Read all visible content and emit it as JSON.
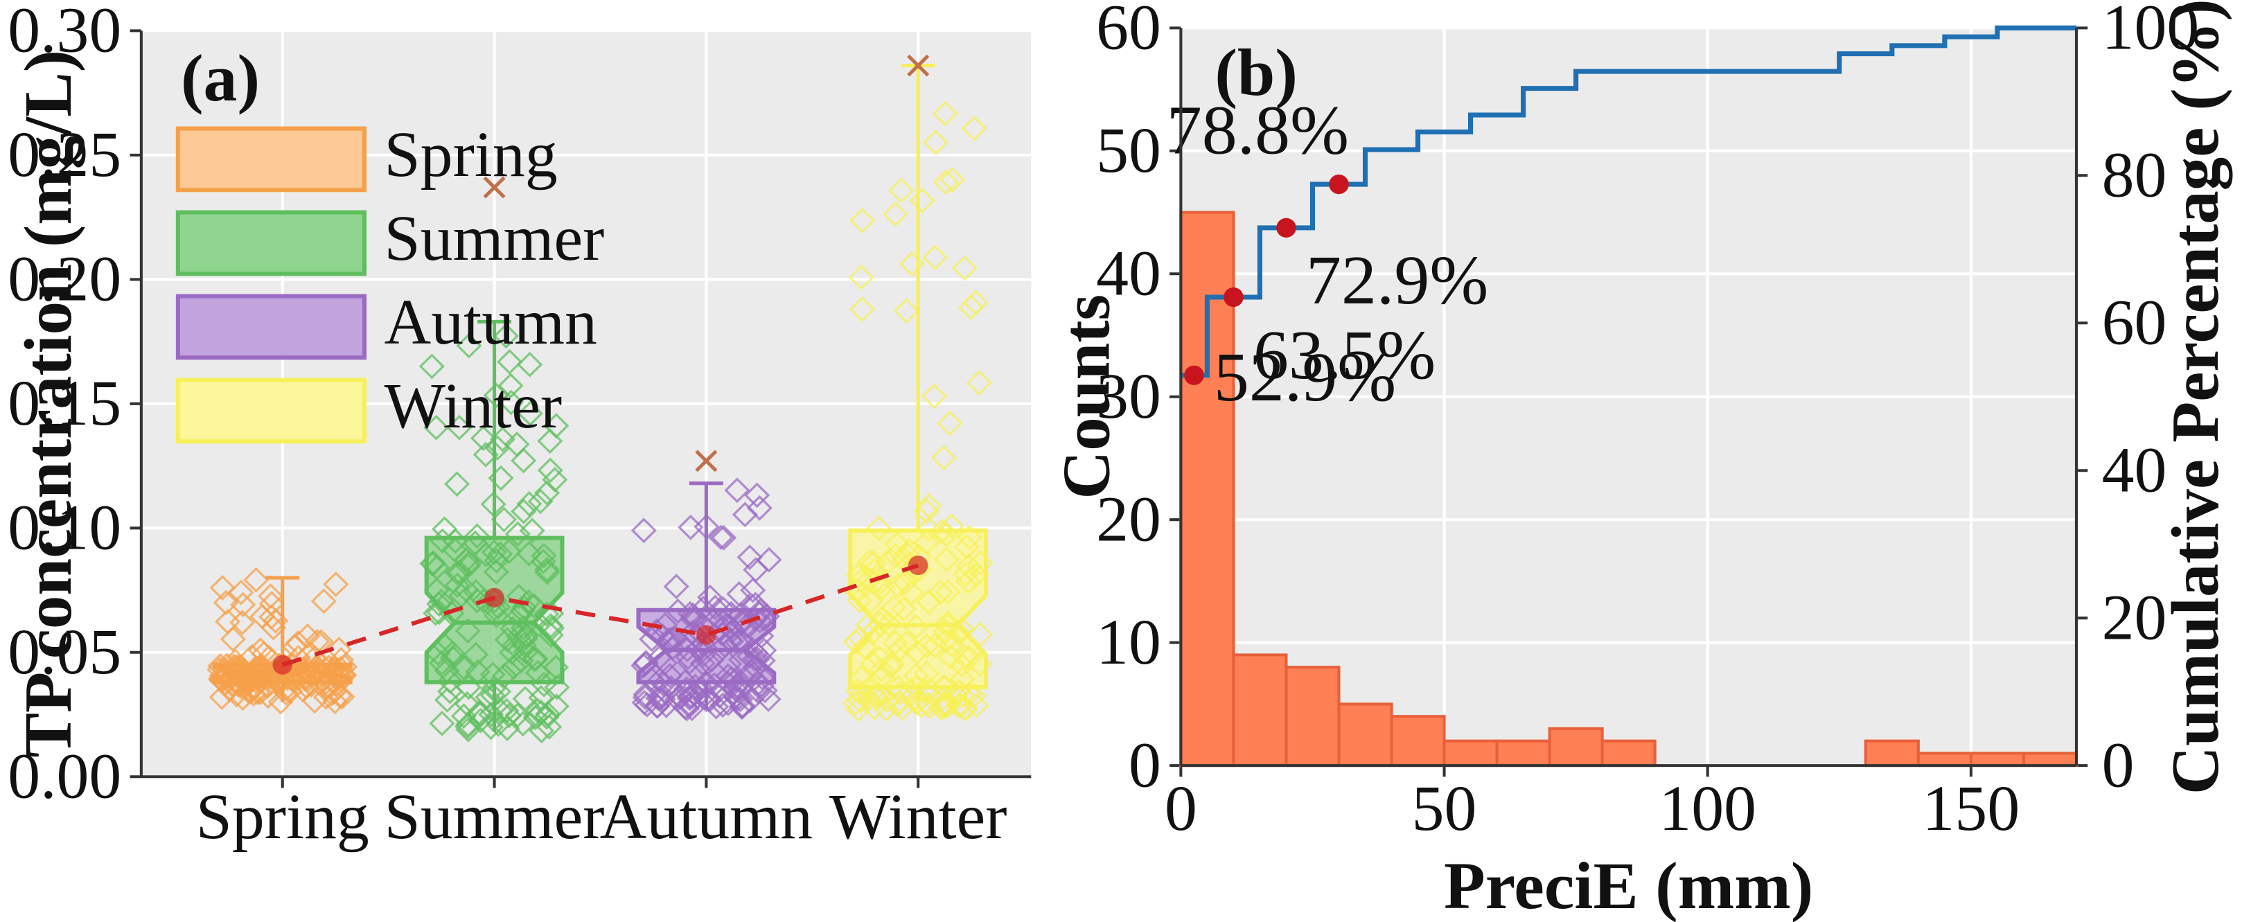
{
  "chart_data": [
    {
      "type": "box",
      "panel_label": "(a)",
      "title": "",
      "xlabel": "",
      "ylabel": "TP concentration (mg/L)",
      "ylim": [
        0,
        0.3
      ],
      "yticks": [
        "0.00",
        "0.05",
        "0.10",
        "0.15",
        "0.20",
        "0.25",
        "0.30"
      ],
      "categories": [
        "Spring",
        "Summer",
        "Autumn",
        "Winter"
      ],
      "legend": [
        "Spring",
        "Summer",
        "Autumn",
        "Winter"
      ],
      "legend_position": "top-left",
      "grid": true,
      "colors": {
        "Spring": "#f5a04a",
        "Summer": "#5fbf5f",
        "Autumn": "#9b6bc4",
        "Winter": "#f7f05a",
        "mean_line": "#d62728",
        "background": "#ebebeb"
      },
      "boxes": [
        {
          "name": "Spring",
          "q1": 0.038,
          "median": 0.042,
          "q3": 0.045,
          "whisker_low": 0.03,
          "whisker_high": 0.08,
          "mean": 0.045,
          "max_outlier": null
        },
        {
          "name": "Summer",
          "q1": 0.038,
          "median": 0.062,
          "q3": 0.096,
          "whisker_low": 0.018,
          "whisker_high": 0.183,
          "mean": 0.072,
          "max_outlier": 0.237
        },
        {
          "name": "Autumn",
          "q1": 0.038,
          "median": 0.051,
          "q3": 0.067,
          "whisker_low": 0.027,
          "whisker_high": 0.118,
          "mean": 0.057,
          "max_outlier": 0.127
        },
        {
          "name": "Winter",
          "q1": 0.036,
          "median": 0.061,
          "q3": 0.099,
          "whisker_low": 0.027,
          "whisker_high": 0.286,
          "mean": 0.085,
          "max_outlier": 0.286
        }
      ]
    },
    {
      "type": "histogram",
      "panel_label": "(b)",
      "title": "",
      "xlabel": "PreciE (mm)",
      "ylabel": "Counts",
      "y2label": "Cumulative Percentage (%)",
      "xlim": [
        0,
        170
      ],
      "ylim": [
        0,
        60
      ],
      "y2lim": [
        0,
        100
      ],
      "xticks": [
        "0",
        "50",
        "100",
        "150"
      ],
      "yticks": [
        "0",
        "10",
        "20",
        "30",
        "40",
        "50",
        "60"
      ],
      "y2ticks": [
        "0",
        "20",
        "40",
        "60",
        "80",
        "100"
      ],
      "grid": true,
      "colors": {
        "bars": "#ff8055",
        "bar_edge": "#e8603a",
        "cumulative": "#1f6fb2",
        "markers": "#c8141e",
        "background": "#ebebeb"
      },
      "bin_width": 10,
      "bins": [
        {
          "start": 0,
          "count": 45
        },
        {
          "start": 10,
          "count": 9
        },
        {
          "start": 20,
          "count": 8
        },
        {
          "start": 30,
          "count": 5
        },
        {
          "start": 40,
          "count": 4
        },
        {
          "start": 50,
          "count": 2
        },
        {
          "start": 60,
          "count": 2
        },
        {
          "start": 70,
          "count": 3
        },
        {
          "start": 80,
          "count": 2
        },
        {
          "start": 130,
          "count": 2
        },
        {
          "start": 140,
          "count": 1
        },
        {
          "start": 150,
          "count": 1
        },
        {
          "start": 160,
          "count": 1
        }
      ],
      "cumulative_steps": [
        {
          "x": 0,
          "pct": 52.9
        },
        {
          "x": 5,
          "pct": 63.5
        },
        {
          "x": 15,
          "pct": 72.9
        },
        {
          "x": 25,
          "pct": 78.8
        },
        {
          "x": 35,
          "pct": 83.5
        },
        {
          "x": 45,
          "pct": 85.9
        },
        {
          "x": 55,
          "pct": 88.2
        },
        {
          "x": 65,
          "pct": 91.8
        },
        {
          "x": 75,
          "pct": 94.1
        },
        {
          "x": 125,
          "pct": 96.5
        },
        {
          "x": 135,
          "pct": 97.6
        },
        {
          "x": 145,
          "pct": 98.8
        },
        {
          "x": 155,
          "pct": 100
        },
        {
          "x": 170,
          "pct": 100
        }
      ],
      "highlight_points": [
        {
          "x": 2.5,
          "pct": 52.9,
          "label": "52.9%"
        },
        {
          "x": 10,
          "pct": 63.5,
          "label": "63.5%"
        },
        {
          "x": 20,
          "pct": 72.9,
          "label": "72.9%"
        },
        {
          "x": 30,
          "pct": 78.8,
          "label": "78.8%"
        }
      ]
    }
  ]
}
